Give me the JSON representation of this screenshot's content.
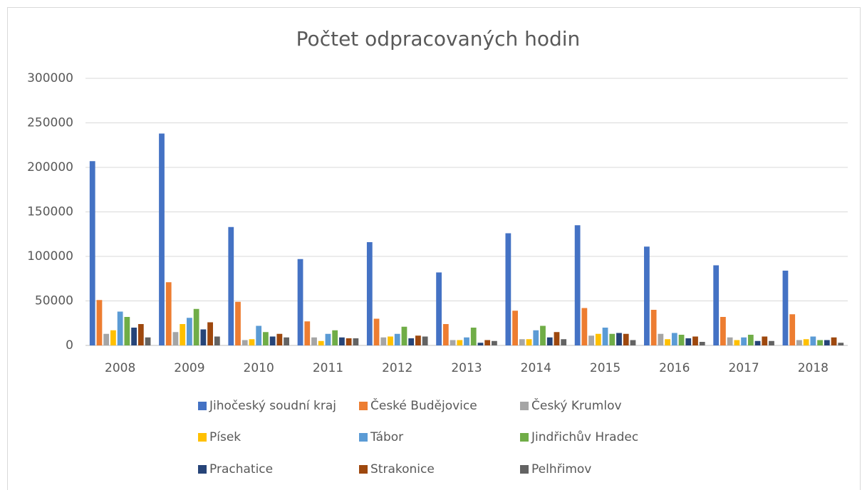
{
  "chart_data": {
    "type": "bar",
    "title": "Počtet odpracovaných hodin",
    "categories": [
      "2008",
      "2009",
      "2010",
      "2011",
      "2012",
      "2013",
      "2014",
      "2015",
      "2016",
      "2017",
      "2018"
    ],
    "series": [
      {
        "name": "Jihočeský soudní kraj",
        "color": "#4472c4",
        "values": [
          207000,
          238000,
          133000,
          97000,
          116000,
          82000,
          126000,
          135000,
          111000,
          90000,
          84000
        ]
      },
      {
        "name": "České Budějovice",
        "color": "#ed7d31",
        "values": [
          51000,
          71000,
          49000,
          27000,
          30000,
          24000,
          39000,
          42000,
          40000,
          32000,
          35000
        ]
      },
      {
        "name": "Český Krumlov",
        "color": "#a5a5a5",
        "values": [
          13000,
          15000,
          6000,
          9000,
          9000,
          6000,
          7000,
          11000,
          13000,
          9000,
          6000
        ]
      },
      {
        "name": "Písek",
        "color": "#ffc000",
        "values": [
          17000,
          24000,
          7000,
          5000,
          10000,
          6000,
          7000,
          13000,
          7000,
          6000,
          7000
        ]
      },
      {
        "name": "Tábor",
        "color": "#5b9bd5",
        "values": [
          38000,
          31000,
          22000,
          13000,
          13000,
          9000,
          17000,
          20000,
          14000,
          9000,
          10000
        ]
      },
      {
        "name": "Jindřichův Hradec",
        "color": "#70ad47",
        "values": [
          32000,
          41000,
          15000,
          17000,
          21000,
          20000,
          22000,
          13000,
          12000,
          12000,
          6000
        ]
      },
      {
        "name": "Prachatice",
        "color": "#264478",
        "values": [
          20000,
          18000,
          10000,
          9000,
          8000,
          3000,
          9000,
          14000,
          8000,
          5000,
          6000
        ]
      },
      {
        "name": "Strakonice",
        "color": "#9e480e",
        "values": [
          24000,
          26000,
          13000,
          8000,
          11000,
          6000,
          15000,
          13000,
          10000,
          10000,
          9000
        ]
      },
      {
        "name": "Pelhřimov",
        "color": "#636363",
        "values": [
          9000,
          10000,
          9000,
          8000,
          10000,
          5000,
          7000,
          6000,
          4000,
          5000,
          3000
        ]
      }
    ],
    "ylim": [
      0,
      300000
    ],
    "yticks": [
      0,
      50000,
      100000,
      150000,
      200000,
      250000,
      300000
    ],
    "grid": true,
    "legend": "bottom"
  }
}
